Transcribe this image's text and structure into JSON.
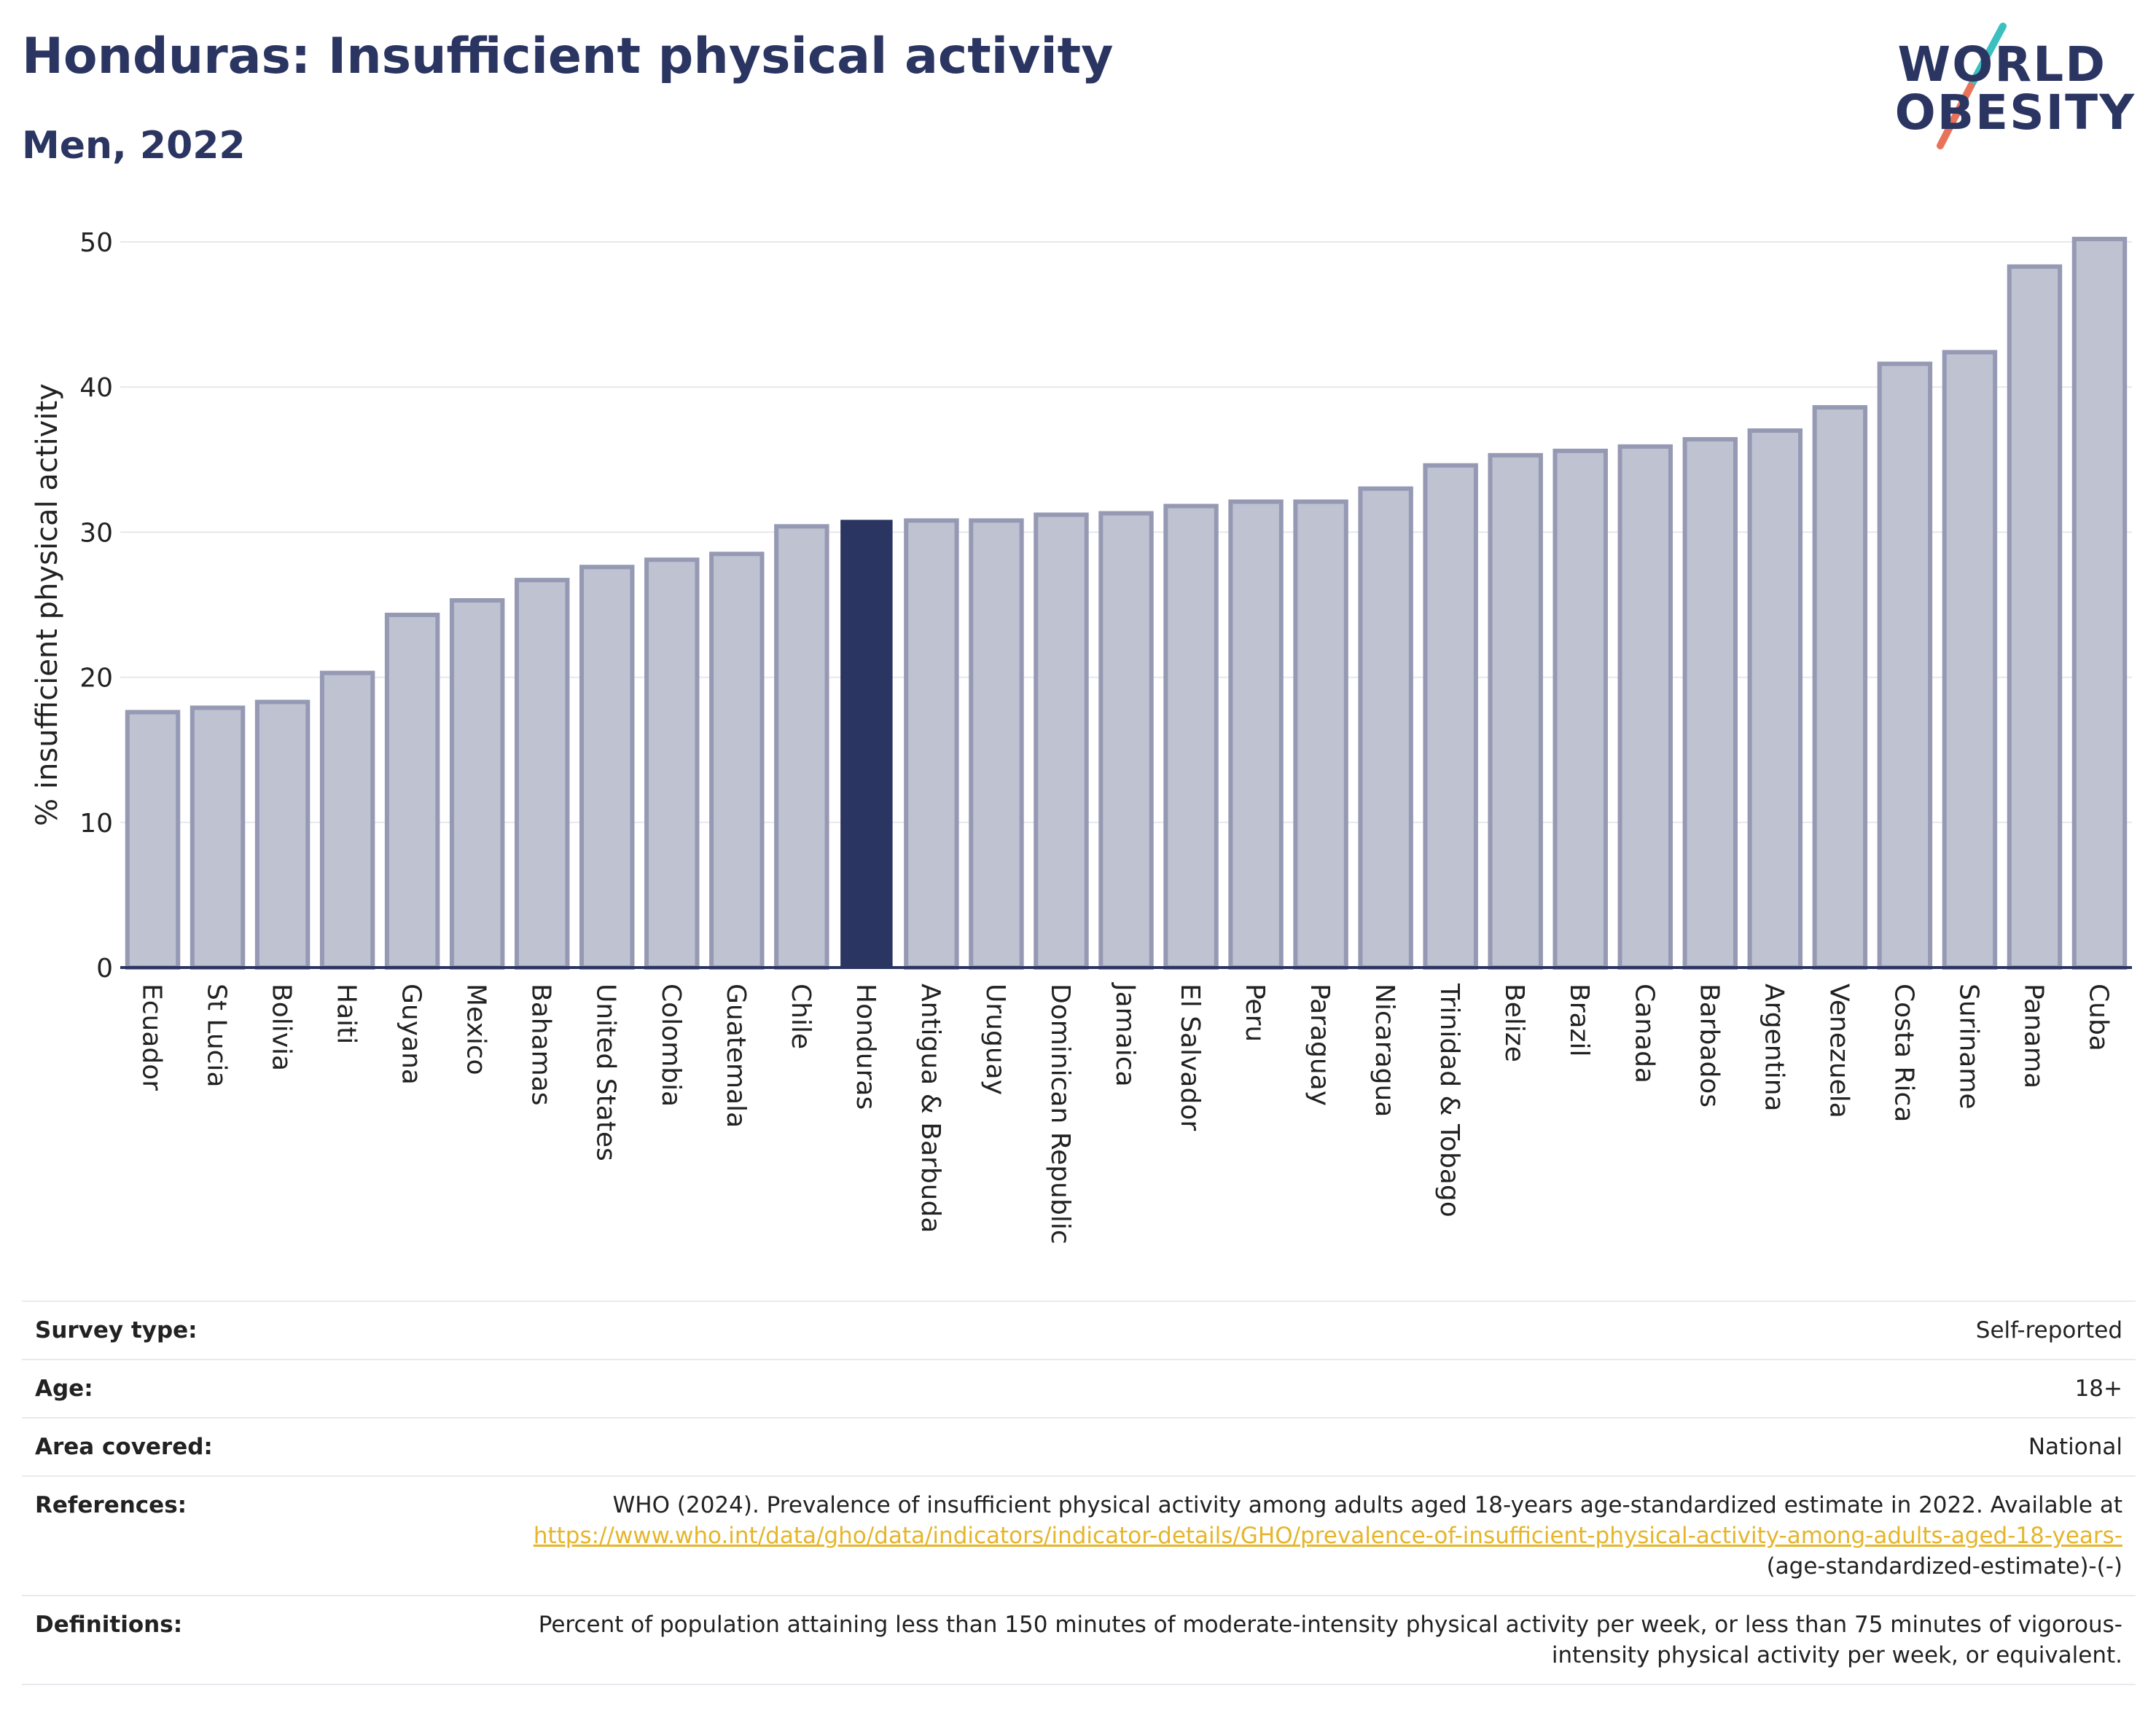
{
  "header": {
    "title": "Honduras: Insufficient physical activity",
    "subtitle": "Men, 2022"
  },
  "logo": {
    "line1": "WORLD",
    "line2": "OBESITY",
    "slash_colors": [
      "#3cbfbf",
      "#e8735a"
    ]
  },
  "colors": {
    "highlight_bar": "#2b3561",
    "other_bar_fill": "#bfc2d1",
    "other_bar_stroke": "#9599b3",
    "axis": "#2b3561",
    "grid": "#e6e8ee"
  },
  "chart_data": {
    "type": "bar",
    "title": "Honduras: Insufficient physical activity",
    "subtitle": "Men, 2022",
    "ylabel": "% insufficient physical activity",
    "xlabel": "",
    "ylim": [
      0,
      50
    ],
    "yticks": [
      0,
      10,
      20,
      30,
      40,
      50
    ],
    "grid": true,
    "highlight": "Honduras",
    "categories": [
      "Ecuador",
      "St Lucia",
      "Bolivia",
      "Haiti",
      "Guyana",
      "Mexico",
      "Bahamas",
      "United States",
      "Colombia",
      "Guatemala",
      "Chile",
      "Honduras",
      "Antigua & Barbuda",
      "Uruguay",
      "Dominican Republic",
      "Jamaica",
      "El Salvador",
      "Peru",
      "Paraguay",
      "Nicaragua",
      "Trinidad & Tobago",
      "Belize",
      "Brazil",
      "Canada",
      "Barbados",
      "Argentina",
      "Venezuela",
      "Costa Rica",
      "Suriname",
      "Panama",
      "Cuba"
    ],
    "values": [
      17.6,
      17.9,
      18.3,
      20.3,
      24.3,
      25.3,
      26.7,
      27.6,
      28.1,
      28.5,
      30.4,
      30.8,
      30.8,
      30.8,
      31.2,
      31.3,
      31.8,
      32.1,
      32.1,
      33.0,
      34.6,
      35.3,
      35.6,
      35.9,
      36.4,
      37.0,
      38.6,
      41.6,
      42.4,
      48.3,
      50.2
    ]
  },
  "info": {
    "survey_type_label": "Survey type:",
    "survey_type_value": "Self-reported",
    "age_label": "Age:",
    "age_value": "18+",
    "area_label": "Area covered:",
    "area_value": "National",
    "references_label": "References:",
    "references_text": "WHO (2024). Prevalence of insufficient physical activity among adults aged 18-years age-standardized estimate in 2022. Available at",
    "references_link": "https://www.who.int/data/gho/data/indicators/indicator-details/GHO/prevalence-of-insufficient-physical-activity-among-adults-aged-18-years-",
    "references_suffix": "(age-standardized-estimate)-(-)",
    "definitions_label": "Definitions:",
    "definitions_value": "Percent of population attaining less than 150 minutes of moderate-intensity physical activity per week, or less than 75 minutes of vigorous-intensity physical activity per week, or equivalent."
  }
}
